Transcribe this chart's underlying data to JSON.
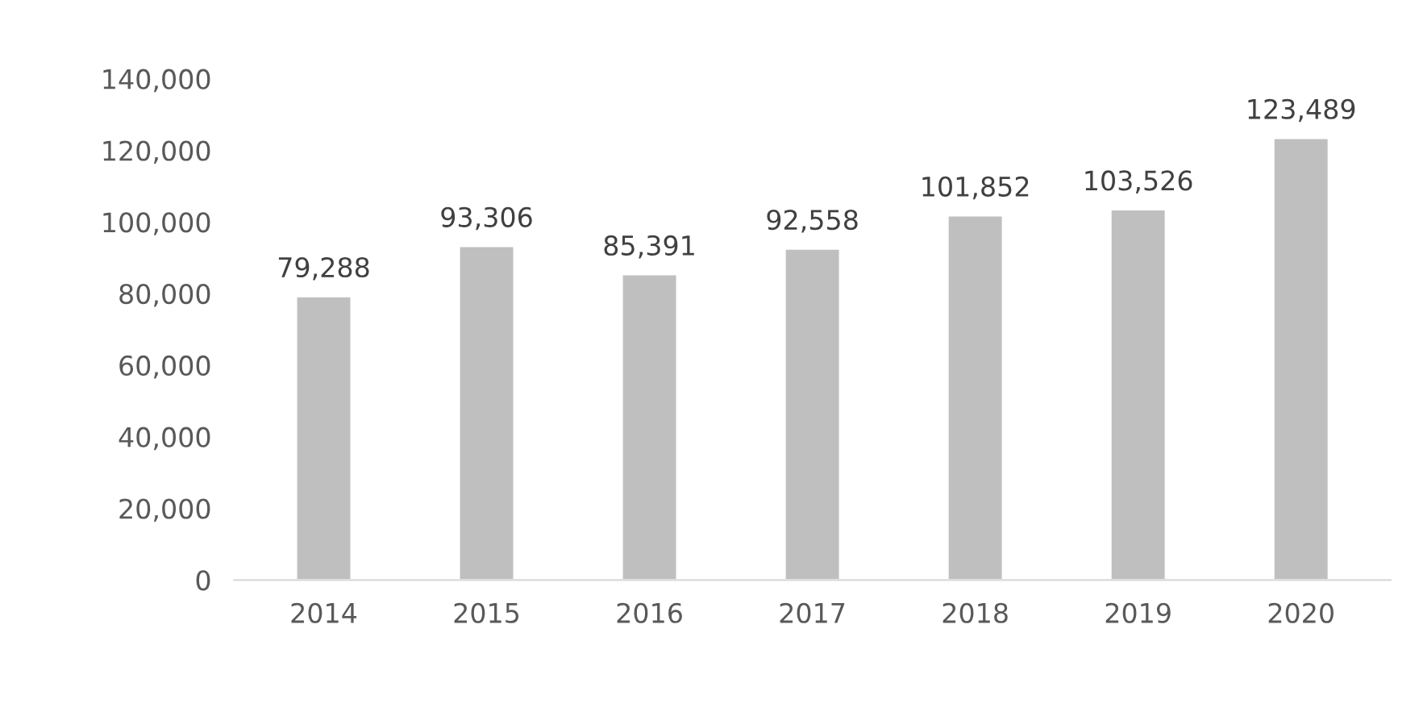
{
  "chart_data": {
    "type": "bar",
    "categories": [
      "2014",
      "2015",
      "2016",
      "2017",
      "2018",
      "2019",
      "2020"
    ],
    "values": [
      79288,
      93306,
      85391,
      92558,
      101852,
      103526,
      123489
    ],
    "color": "#bfbfbf",
    "ylim": [
      0,
      140000
    ],
    "yticks": [
      0,
      {
        "value": 20000,
        "label": "20,000"
      },
      {
        "value": 40000,
        "label": "40,000"
      },
      {
        "value": 60000,
        "label": "60,000"
      },
      {
        "value": 80000,
        "label": "80,000"
      },
      {
        "value": 100000,
        "label": "100,000"
      },
      {
        "value": 120000,
        "label": "120,000"
      },
      {
        "value": 140000,
        "label": "140,000"
      }
    ],
    "value_labels": [
      "79,288",
      "93,306",
      "85,391",
      "92,558",
      "101,852",
      "103,526",
      "123,489"
    ],
    "grid": false
  }
}
